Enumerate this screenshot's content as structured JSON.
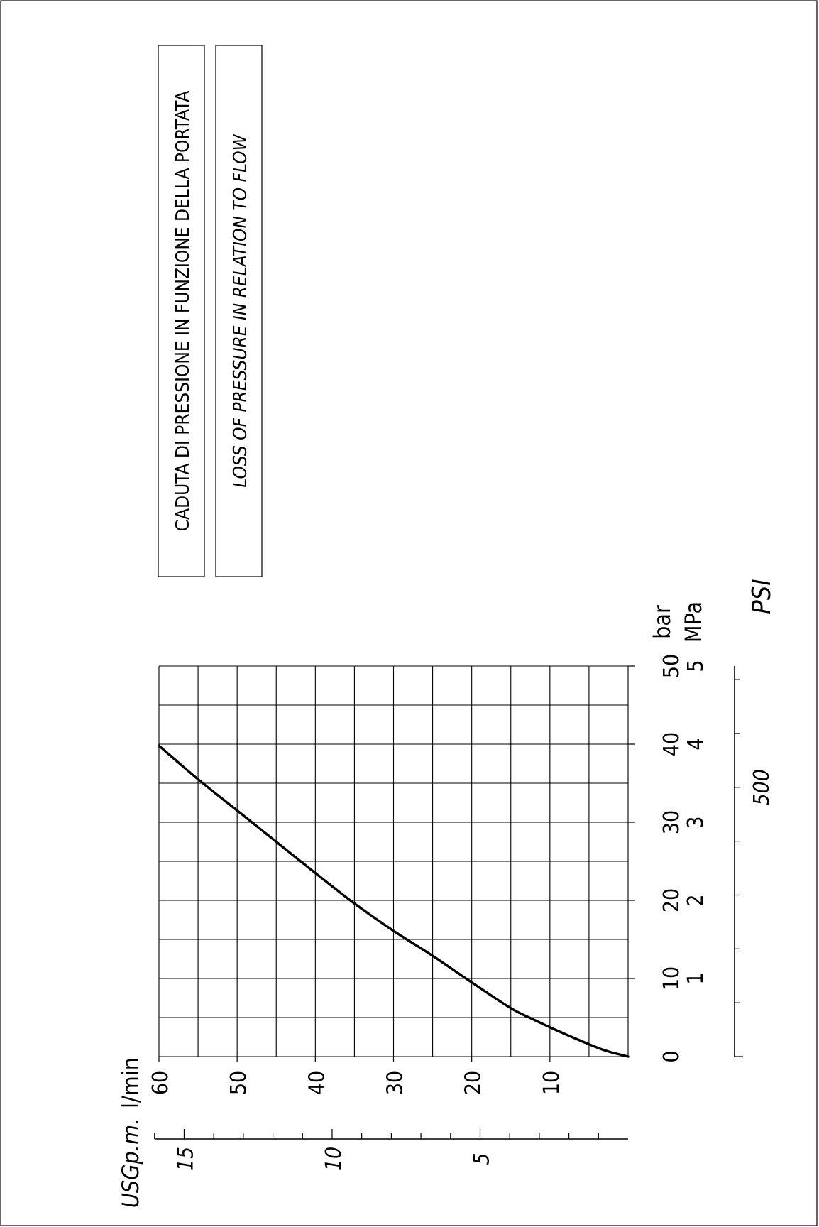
{
  "colors": {
    "ink": "#000000",
    "paper": "#ffffff"
  },
  "chart_data": {
    "type": "line",
    "title": "CADUTA DI PRESSIONE IN FUNZIONE DELLA PORTATA",
    "subtitle": "LOSS OF PRESSURE IN RELATION TO FLOW",
    "orientation": "rotated 90 degrees counter-clockwise",
    "grid": true,
    "flow_axis": {
      "label": "l/min",
      "range": [
        0,
        60
      ],
      "major_ticks": [
        0,
        10,
        20,
        30,
        40,
        50,
        60
      ],
      "minor_step": 5
    },
    "flow_axis_secondary": {
      "label": "USGp.m.",
      "labeled_ticks": [
        5,
        10,
        15
      ],
      "minor_step": 1,
      "max_shown": 16
    },
    "pressure_axis": {
      "label": "bar",
      "range": [
        0,
        50
      ],
      "major_ticks": [
        0,
        10,
        20,
        30,
        40,
        50
      ],
      "minor_step": 5
    },
    "pressure_axis_mpa": {
      "label": "MPa",
      "labeled_ticks": [
        1,
        2,
        3,
        4,
        5
      ]
    },
    "pressure_axis_psi": {
      "label": "PSI",
      "labeled_ticks": [
        500
      ],
      "minor_step": 100
    },
    "series": [
      {
        "flow_lpm": [
          0,
          3,
          6,
          9,
          12,
          15,
          20,
          25,
          30,
          35,
          40,
          45,
          50,
          55,
          60
        ],
        "pressure_bar": [
          0,
          0.8,
          2.0,
          3.3,
          4.7,
          6.2,
          9.5,
          12.9,
          16.1,
          19.6,
          23.5,
          27.5,
          31.5,
          35.5,
          39.8
        ]
      }
    ]
  }
}
